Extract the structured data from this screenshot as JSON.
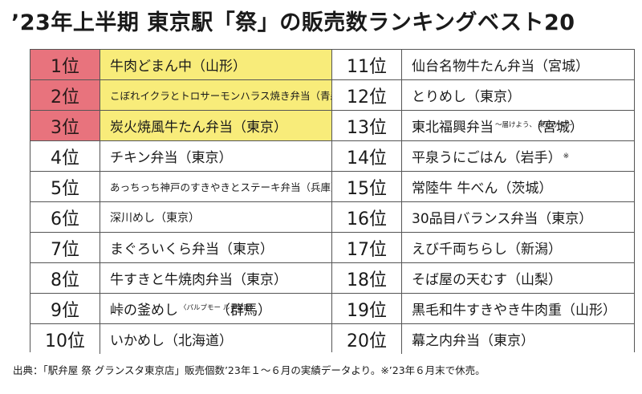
{
  "title": "’23年上半期 東京駅「祭」の販売数ランキングベスト20",
  "left_rows": [
    {
      "rank": "1位",
      "name": "牛肉どまん中（山形）",
      "highlight": true,
      "size": "normal"
    },
    {
      "rank": "2位",
      "name": "こぼれイクラとトロサーモンハラス焼き弁当（青森）",
      "highlight": true,
      "size": "small"
    },
    {
      "rank": "3位",
      "name": "炭火焼風牛たん弁当（東京）",
      "highlight": true,
      "size": "normal"
    },
    {
      "rank": "4位",
      "name": "チキン弁当（東京）",
      "highlight": false,
      "size": "normal"
    },
    {
      "rank": "5位",
      "name": "あっちっち神戸のすきやきとステーキ弁当（兵庫）",
      "highlight": false,
      "size": "small"
    },
    {
      "rank": "6位",
      "name": "深川めし（東京）",
      "highlight": false,
      "size": "mid"
    },
    {
      "rank": "7位",
      "name": "まぐろいくら弁当（東京）",
      "highlight": false,
      "size": "normal"
    },
    {
      "rank": "8位",
      "name": "牛すきと牛焼肉弁当（東京）",
      "highlight": false,
      "size": "normal"
    },
    {
      "rank": "9位",
      "name": "峠の釜めし",
      "note": "〈パルプモー ルド容器〉",
      "suffix": "（群馬）",
      "highlight": false,
      "size": "normal"
    },
    {
      "rank": "10位",
      "name": "いかめし（北海道）",
      "highlight": false,
      "size": "normal"
    }
  ],
  "right_rows": [
    {
      "rank": "11位",
      "name": "仙台名物牛たん弁当（宮城）"
    },
    {
      "rank": "12位",
      "name": "とりめし（東京）"
    },
    {
      "rank": "13位",
      "name": "東北福興弁当",
      "note": "〜届けよう、 東北から〜",
      "suffix": "（宮城）"
    },
    {
      "rank": "14位",
      "name": "平泉うにごはん（岩手）",
      "sup": "※"
    },
    {
      "rank": "15位",
      "name": "常陸牛 牛べん（茨城）"
    },
    {
      "rank": "16位",
      "name": "30品目バランス弁当（東京）"
    },
    {
      "rank": "17位",
      "name": "えび千両ちらし（新潟）"
    },
    {
      "rank": "18位",
      "name": "そば屋の天むす（山梨）"
    },
    {
      "rank": "19位",
      "name": "黒毛和牛すきやき牛肉重（山形）"
    },
    {
      "rank": "20位",
      "name": "幕之内弁当（東京）"
    }
  ],
  "footer": "出典：「駅弁屋 祭 グランスタ東京店」販売個数’23年１〜６月の実績データより。※’23年６月末で休売。",
  "colors": {
    "rank_highlight": "#e8737d",
    "name_highlight": "#f8ec7a",
    "border": "#555555"
  }
}
